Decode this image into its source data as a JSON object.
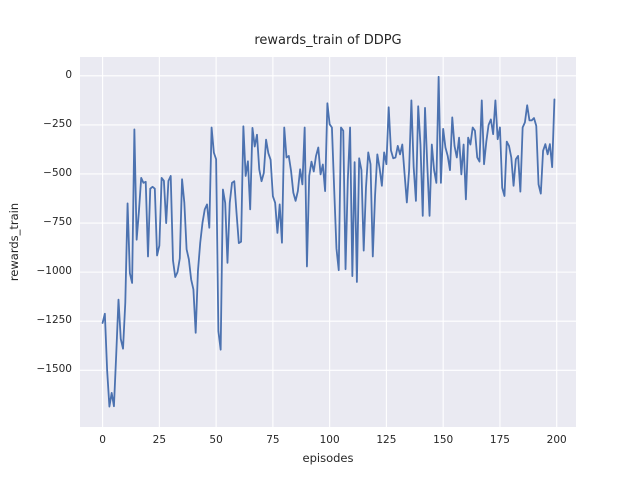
{
  "colors": {
    "line": "#4c72b0",
    "axes_background": "#eaeaf2",
    "grid": "#ffffff",
    "text": "#262626",
    "figure_background": "#ffffff"
  },
  "chart_data": {
    "type": "line",
    "title": "rewards_train of DDPG",
    "xlabel": "episodes",
    "ylabel": "rewards_train",
    "legend": "none",
    "grid": "on",
    "x_description": "episode index 0..199, one point per episode",
    "xlim": [
      -9.95,
      208.5
    ],
    "ylim": [
      -1789,
      96
    ],
    "xticks": [
      0,
      25,
      50,
      75,
      100,
      125,
      150,
      175,
      200
    ],
    "yticks": [
      0,
      -250,
      -500,
      -750,
      -1000,
      -1250,
      -1500
    ],
    "series": [
      {
        "name": "rewards_train",
        "values": [
          -1259,
          -1212,
          -1500,
          -1685,
          -1615,
          -1683,
          -1420,
          -1140,
          -1340,
          -1390,
          -1155,
          -650,
          -1005,
          -1055,
          -273,
          -835,
          -690,
          -520,
          -545,
          -540,
          -920,
          -575,
          -565,
          -575,
          -915,
          -865,
          -520,
          -535,
          -750,
          -535,
          -510,
          -940,
          -1025,
          -1000,
          -930,
          -527,
          -646,
          -884,
          -935,
          -1037,
          -1088,
          -1309,
          -994,
          -850,
          -748,
          -680,
          -655,
          -774,
          -263,
          -391,
          -425,
          -1301,
          -1395,
          -579,
          -647,
          -953,
          -647,
          -545,
          -537,
          -700,
          -852,
          -845,
          -257,
          -510,
          -435,
          -680,
          -265,
          -360,
          -300,
          -477,
          -537,
          -495,
          -325,
          -394,
          -428,
          -613,
          -647,
          -800,
          -655,
          -850,
          -263,
          -416,
          -408,
          -484,
          -595,
          -637,
          -587,
          -476,
          -553,
          -263,
          -971,
          -510,
          -437,
          -487,
          -408,
          -365,
          -502,
          -452,
          -587,
          -140,
          -247,
          -263,
          -578,
          -880,
          -990,
          -263,
          -280,
          -985,
          -530,
          -263,
          -1020,
          -440,
          -1050,
          -420,
          -480,
          -890,
          -570,
          -390,
          -450,
          -920,
          -610,
          -400,
          -470,
          -560,
          -390,
          -450,
          -160,
          -380,
          -420,
          -416,
          -357,
          -400,
          -350,
          -500,
          -645,
          -480,
          -125,
          -465,
          -637,
          -155,
          -350,
          -713,
          -163,
          -455,
          -713,
          -350,
          -480,
          -545,
          -5,
          -545,
          -270,
          -365,
          -408,
          -480,
          -212,
          -357,
          -416,
          -315,
          -502,
          -350,
          -629,
          -315,
          -350,
          -263,
          -280,
          -416,
          -437,
          -125,
          -450,
          -335,
          -250,
          -222,
          -297,
          -125,
          -323,
          -263,
          -570,
          -612,
          -335,
          -357,
          -416,
          -560,
          -425,
          -408,
          -590,
          -263,
          -237,
          -150,
          -227,
          -227,
          -215,
          -255,
          -553,
          -600,
          -382,
          -348,
          -400,
          -348,
          -465,
          -120
        ]
      }
    ]
  }
}
